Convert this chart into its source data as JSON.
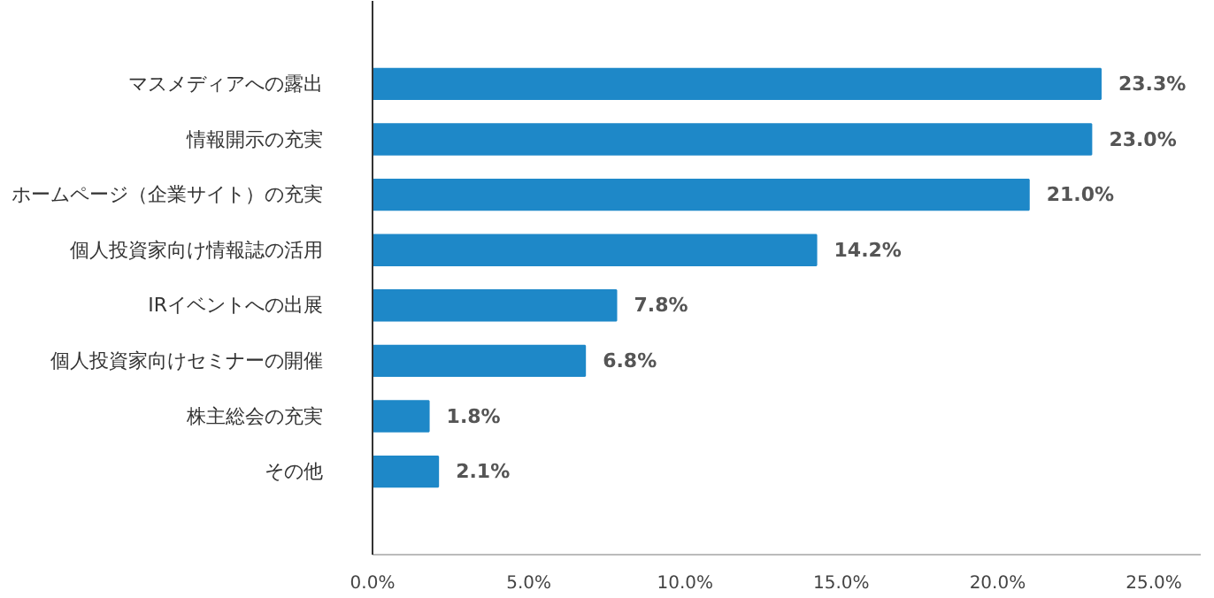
{
  "chart_data": {
    "type": "bar",
    "orientation": "horizontal",
    "categories": [
      "マスメディアへの露出",
      "情報開示の充実",
      "ホームページ（企業サイト）の充実",
      "個人投資家向け情報誌の活用",
      "IRイベントへの出展",
      "個人投資家向けセミナーの開催",
      "株主総会の充実",
      "その他"
    ],
    "values": [
      23.3,
      23.0,
      21.0,
      14.2,
      7.8,
      6.8,
      1.8,
      2.1
    ],
    "value_labels": [
      "23.3%",
      "23.0%",
      "21.0%",
      "14.2%",
      "7.8%",
      "6.8%",
      "1.8%",
      "2.1%"
    ],
    "color": "#1e88c8",
    "xlim": [
      0,
      26.5
    ],
    "xticks": [
      {
        "value": 0,
        "label": "0.0%"
      },
      {
        "value": 5,
        "label": "5.0%"
      },
      {
        "value": 10,
        "label": "10.0%"
      },
      {
        "value": 15,
        "label": "15.0%"
      },
      {
        "value": 20,
        "label": "20.0%"
      },
      {
        "value": 25,
        "label": "25.0%"
      }
    ],
    "grid": false
  }
}
